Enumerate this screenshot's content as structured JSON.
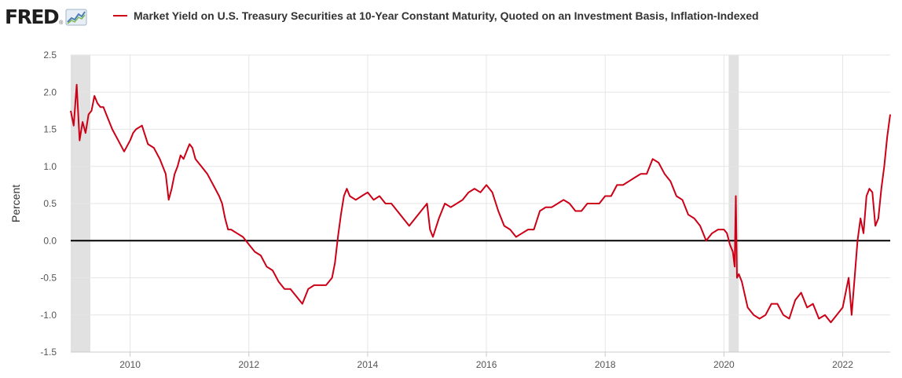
{
  "header": {
    "logo_text": "FRED",
    "logo_mark": "®",
    "legend_label": "Market Yield on U.S. Treasury Securities at 10-Year Constant Maturity, Quoted on an Investment Basis, Inflation-Indexed"
  },
  "colors": {
    "series": "#cc0016",
    "recession": "#e1e1e1",
    "grid": "#e6e6e6",
    "zero": "#000000"
  },
  "chart_data": {
    "type": "line",
    "title": "",
    "xlabel": "",
    "ylabel": "Percent",
    "xlim": [
      2009.0,
      2022.8
    ],
    "ylim": [
      -1.5,
      2.5
    ],
    "yticks": [
      -1.5,
      -1.0,
      -0.5,
      0.0,
      0.5,
      1.0,
      1.5,
      2.0,
      2.5
    ],
    "ytick_labels": [
      "-1.5",
      "-1.0",
      "-0.5",
      "0.0",
      "0.5",
      "1.0",
      "1.5",
      "2.0",
      "2.5"
    ],
    "xticks": [
      2010,
      2012,
      2014,
      2016,
      2018,
      2020,
      2022
    ],
    "xtick_labels": [
      "2010",
      "2012",
      "2014",
      "2016",
      "2018",
      "2020",
      "2022"
    ],
    "grid": true,
    "legend": "top",
    "recessions": [
      [
        2009.0,
        2009.33
      ],
      [
        2020.08,
        2020.25
      ]
    ],
    "series": [
      {
        "name": "Market Yield on U.S. Treasury Securities at 10-Year Constant Maturity, Quoted on an Investment Basis, Inflation-Indexed",
        "x": [
          2009.0,
          2009.05,
          2009.1,
          2009.15,
          2009.2,
          2009.25,
          2009.3,
          2009.35,
          2009.4,
          2009.45,
          2009.5,
          2009.55,
          2009.6,
          2009.7,
          2009.8,
          2009.9,
          2010.0,
          2010.05,
          2010.1,
          2010.2,
          2010.3,
          2010.4,
          2010.5,
          2010.6,
          2010.65,
          2010.7,
          2010.75,
          2010.8,
          2010.85,
          2010.9,
          2011.0,
          2011.05,
          2011.1,
          2011.2,
          2011.3,
          2011.4,
          2011.5,
          2011.55,
          2011.6,
          2011.65,
          2011.7,
          2011.8,
          2011.9,
          2012.0,
          2012.1,
          2012.2,
          2012.3,
          2012.4,
          2012.5,
          2012.6,
          2012.7,
          2012.8,
          2012.9,
          2013.0,
          2013.1,
          2013.2,
          2013.3,
          2013.4,
          2013.45,
          2013.5,
          2013.55,
          2013.6,
          2013.65,
          2013.7,
          2013.8,
          2013.9,
          2014.0,
          2014.1,
          2014.2,
          2014.3,
          2014.4,
          2014.5,
          2014.6,
          2014.7,
          2014.8,
          2014.9,
          2015.0,
          2015.05,
          2015.1,
          2015.2,
          2015.3,
          2015.4,
          2015.5,
          2015.6,
          2015.7,
          2015.8,
          2015.9,
          2016.0,
          2016.1,
          2016.2,
          2016.3,
          2016.4,
          2016.5,
          2016.6,
          2016.7,
          2016.8,
          2016.9,
          2017.0,
          2017.1,
          2017.2,
          2017.3,
          2017.4,
          2017.5,
          2017.6,
          2017.7,
          2017.8,
          2017.9,
          2018.0,
          2018.1,
          2018.2,
          2018.3,
          2018.4,
          2018.5,
          2018.6,
          2018.7,
          2018.8,
          2018.9,
          2019.0,
          2019.1,
          2019.2,
          2019.3,
          2019.4,
          2019.5,
          2019.6,
          2019.65,
          2019.7,
          2019.8,
          2019.9,
          2020.0,
          2020.05,
          2020.1,
          2020.15,
          2020.18,
          2020.2,
          2020.22,
          2020.25,
          2020.3,
          2020.4,
          2020.5,
          2020.6,
          2020.7,
          2020.8,
          2020.9,
          2021.0,
          2021.1,
          2021.2,
          2021.3,
          2021.4,
          2021.5,
          2021.6,
          2021.7,
          2021.8,
          2021.9,
          2022.0,
          2022.05,
          2022.1,
          2022.15,
          2022.2,
          2022.25,
          2022.3,
          2022.35,
          2022.4,
          2022.45,
          2022.5,
          2022.55,
          2022.6,
          2022.65,
          2022.7,
          2022.75,
          2022.8
        ],
        "y": [
          1.75,
          1.55,
          2.1,
          1.35,
          1.6,
          1.45,
          1.7,
          1.75,
          1.95,
          1.85,
          1.8,
          1.8,
          1.7,
          1.5,
          1.35,
          1.2,
          1.35,
          1.45,
          1.5,
          1.55,
          1.3,
          1.25,
          1.1,
          0.9,
          0.55,
          0.7,
          0.9,
          1.0,
          1.15,
          1.1,
          1.3,
          1.25,
          1.1,
          1.0,
          0.9,
          0.75,
          0.6,
          0.5,
          0.3,
          0.15,
          0.15,
          0.1,
          0.05,
          -0.05,
          -0.15,
          -0.2,
          -0.35,
          -0.4,
          -0.55,
          -0.65,
          -0.65,
          -0.75,
          -0.85,
          -0.65,
          -0.6,
          -0.6,
          -0.6,
          -0.5,
          -0.3,
          0.05,
          0.35,
          0.6,
          0.7,
          0.6,
          0.55,
          0.6,
          0.65,
          0.55,
          0.6,
          0.5,
          0.5,
          0.4,
          0.3,
          0.2,
          0.3,
          0.4,
          0.5,
          0.15,
          0.05,
          0.3,
          0.5,
          0.45,
          0.5,
          0.55,
          0.65,
          0.7,
          0.65,
          0.75,
          0.65,
          0.4,
          0.2,
          0.15,
          0.05,
          0.1,
          0.15,
          0.15,
          0.4,
          0.45,
          0.45,
          0.5,
          0.55,
          0.5,
          0.4,
          0.4,
          0.5,
          0.5,
          0.5,
          0.6,
          0.6,
          0.75,
          0.75,
          0.8,
          0.85,
          0.9,
          0.9,
          1.1,
          1.05,
          0.9,
          0.8,
          0.6,
          0.55,
          0.35,
          0.3,
          0.2,
          0.1,
          0.0,
          0.1,
          0.15,
          0.15,
          0.1,
          -0.05,
          -0.15,
          -0.35,
          0.6,
          -0.5,
          -0.45,
          -0.55,
          -0.9,
          -1.0,
          -1.05,
          -1.0,
          -0.85,
          -0.85,
          -1.0,
          -1.05,
          -0.8,
          -0.7,
          -0.9,
          -0.85,
          -1.05,
          -1.0,
          -1.1,
          -1.0,
          -0.9,
          -0.7,
          -0.5,
          -1.0,
          -0.5,
          0.0,
          0.3,
          0.1,
          0.6,
          0.7,
          0.65,
          0.2,
          0.3,
          0.7,
          1.0,
          1.4,
          1.7
        ]
      }
    ]
  }
}
